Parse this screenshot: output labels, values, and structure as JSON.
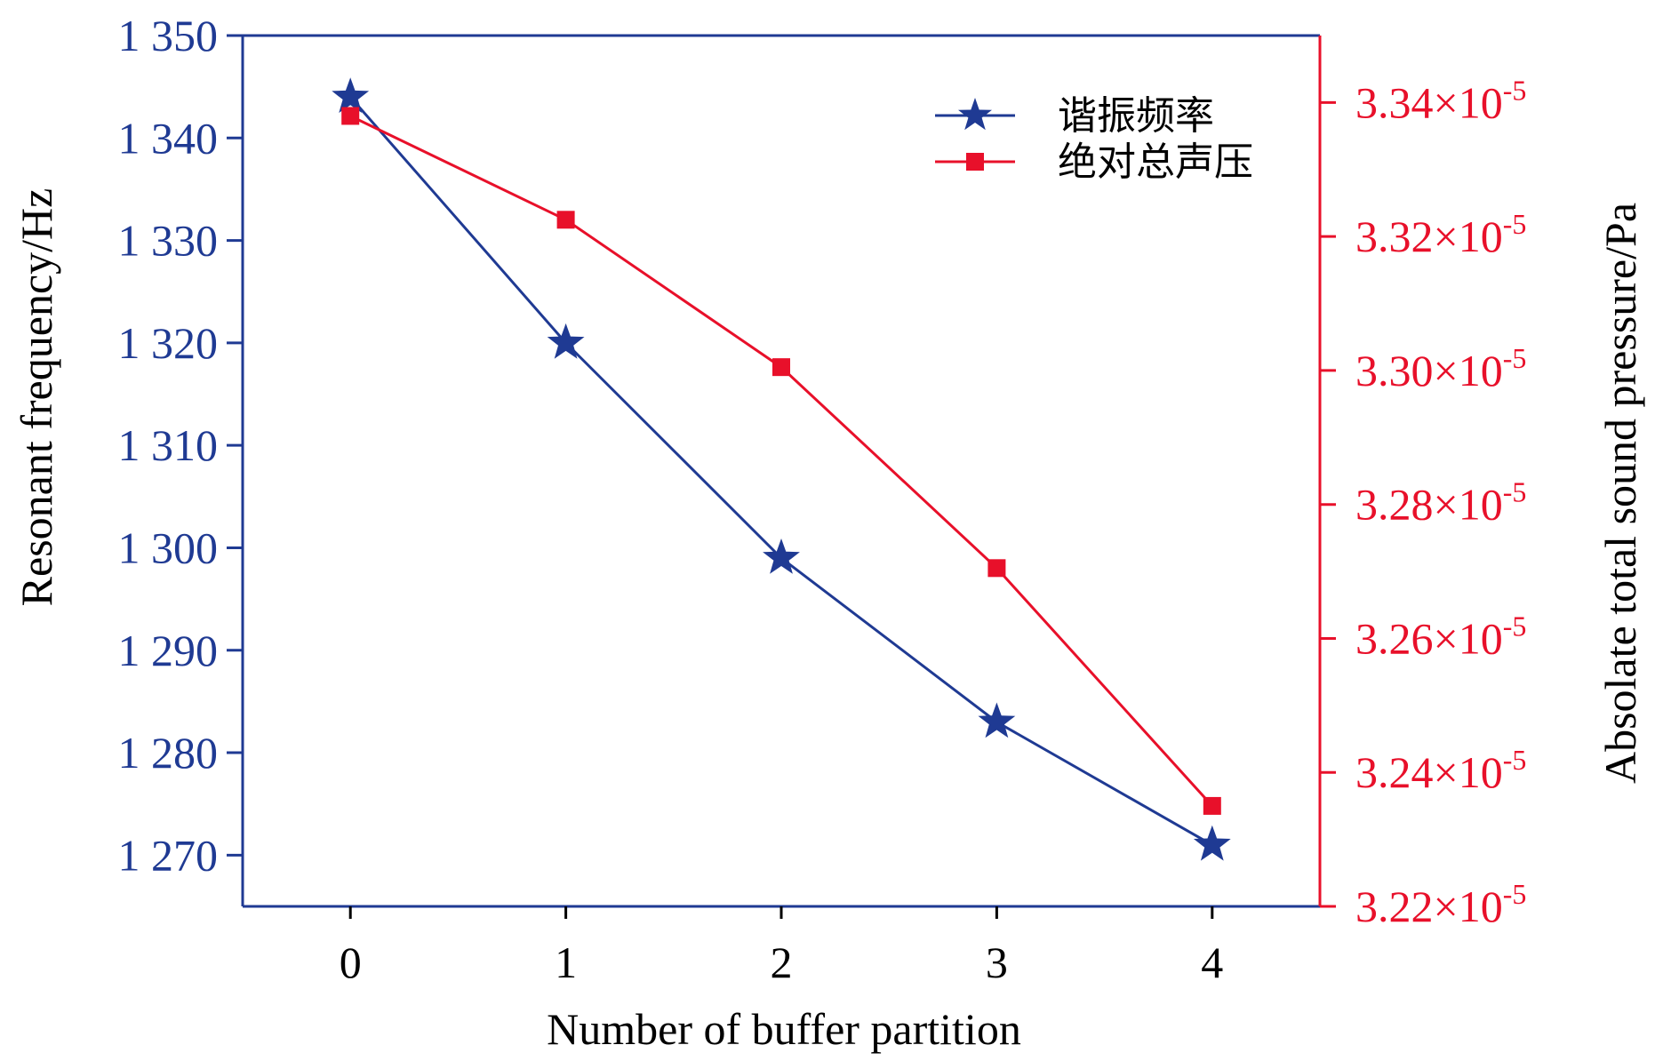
{
  "chart_data": {
    "type": "line",
    "x": [
      0,
      1,
      2,
      3,
      4
    ],
    "xlabel": "Number of buffer partition",
    "ylabel": "Resonant frequency/Hz",
    "y2label": "Absolate total sound pressure/Pa",
    "xlim": [
      -0.5,
      4.5
    ],
    "ylim": [
      1265,
      1350
    ],
    "y2lim": [
      3.22e-05,
      3.35e-05
    ],
    "x_ticks": [
      "0",
      "1",
      "2",
      "3",
      "4"
    ],
    "y_ticks": [
      {
        "value": 1270,
        "label": "1 270"
      },
      {
        "value": 1280,
        "label": "1 280"
      },
      {
        "value": 1290,
        "label": "1 290"
      },
      {
        "value": 1300,
        "label": "1 300"
      },
      {
        "value": 1310,
        "label": "1 310"
      },
      {
        "value": 1320,
        "label": "1 320"
      },
      {
        "value": 1330,
        "label": "1 330"
      },
      {
        "value": 1340,
        "label": "1 340"
      },
      {
        "value": 1350,
        "label": "1 350"
      }
    ],
    "y2_ticks": [
      {
        "value": 3.22e-05,
        "mantissa": "3.22×10",
        "exp": "-5"
      },
      {
        "value": 3.24e-05,
        "mantissa": "3.24×10",
        "exp": "-5"
      },
      {
        "value": 3.26e-05,
        "mantissa": "3.26×10",
        "exp": "-5"
      },
      {
        "value": 3.28e-05,
        "mantissa": "3.28×10",
        "exp": "-5"
      },
      {
        "value": 3.3e-05,
        "mantissa": "3.30×10",
        "exp": "-5"
      },
      {
        "value": 3.32e-05,
        "mantissa": "3.32×10",
        "exp": "-5"
      },
      {
        "value": 3.34e-05,
        "mantissa": "3.34×10",
        "exp": "-5"
      }
    ],
    "series": [
      {
        "name": "谐振频率",
        "axis": "left",
        "marker": "star",
        "color": "#1f3a93",
        "values": [
          1344,
          1320,
          1299,
          1283,
          1271
        ]
      },
      {
        "name": "绝对总声压",
        "axis": "right",
        "marker": "square",
        "color": "#e8102a",
        "values": [
          3.338e-05,
          3.3225e-05,
          3.3005e-05,
          3.2705e-05,
          3.235e-05
        ]
      }
    ],
    "legend_position": "top-right",
    "grid": false
  }
}
